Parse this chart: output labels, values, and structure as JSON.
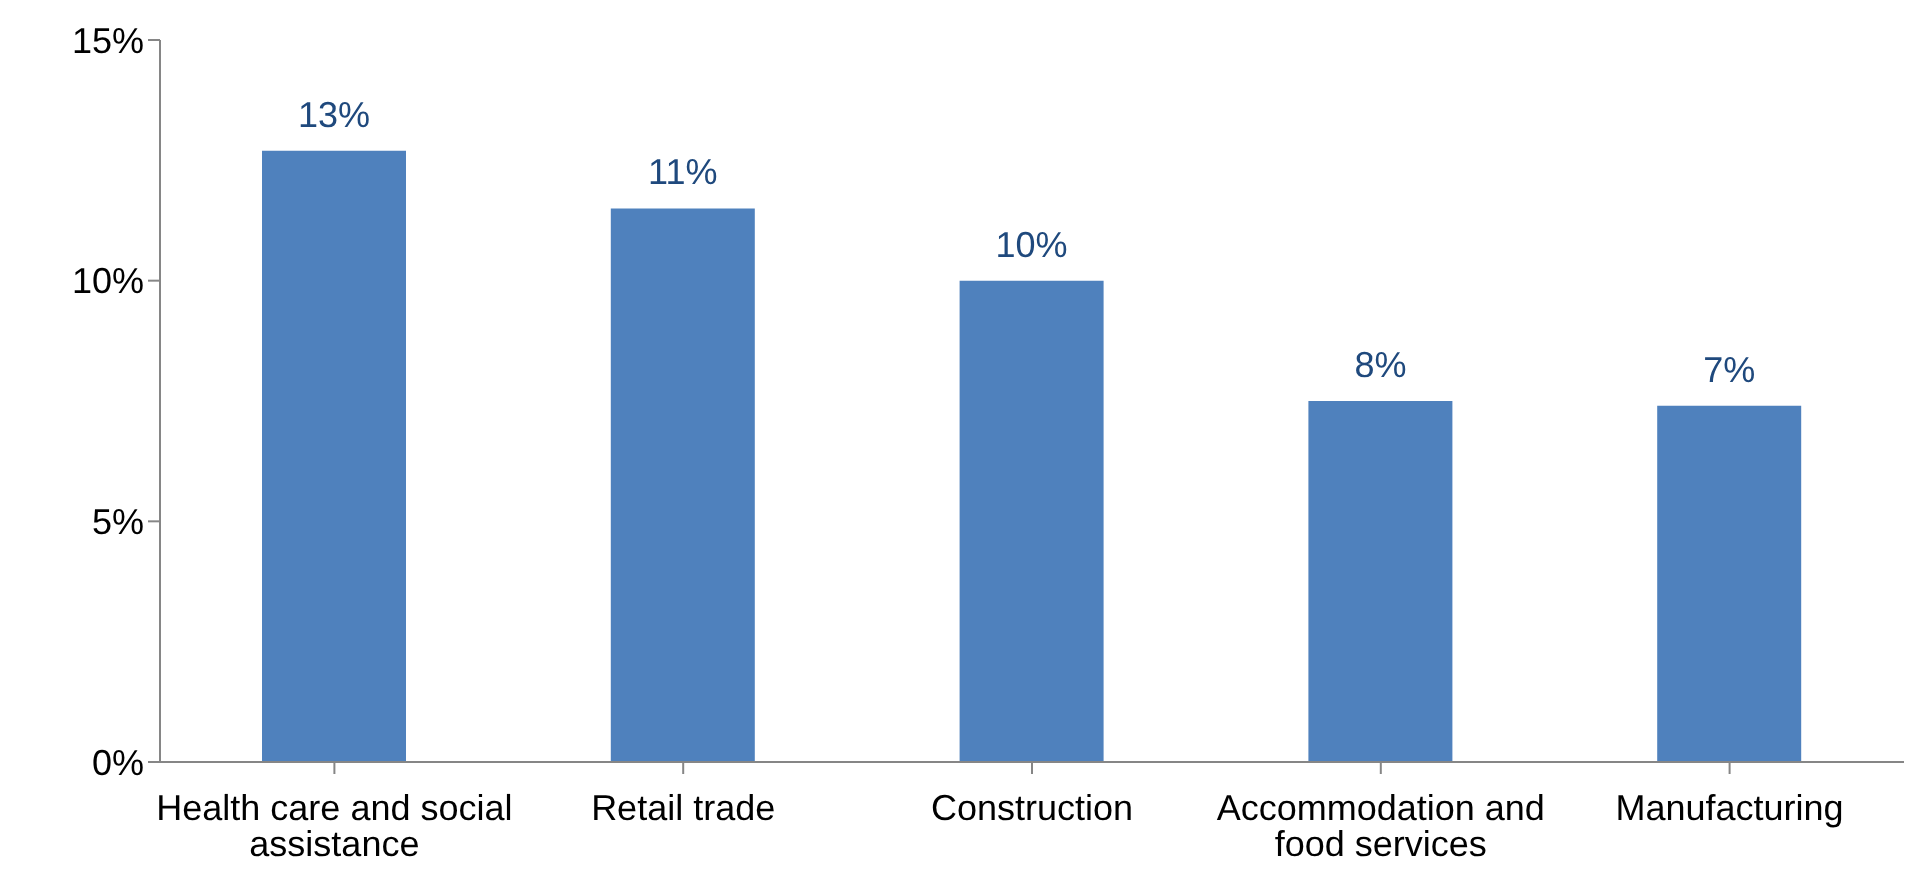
{
  "chart_data": {
    "type": "bar",
    "categories": [
      "Health care and social assistance",
      "Retail trade",
      "Construction",
      "Accommodation and food services",
      "Manufacturing"
    ],
    "values": [
      12.7,
      11.5,
      10.0,
      7.5,
      7.4
    ],
    "value_labels": [
      "13%",
      "11%",
      "10%",
      "8%",
      "7%"
    ],
    "color": "#4f81bd",
    "ylim": [
      0,
      15
    ],
    "yticks": [
      {
        "value": 0,
        "label": "0%"
      },
      {
        "value": 5,
        "label": "5%"
      },
      {
        "value": 10,
        "label": "10%"
      },
      {
        "value": 15,
        "label": "15%"
      }
    ],
    "grid": false,
    "legend": false
  }
}
